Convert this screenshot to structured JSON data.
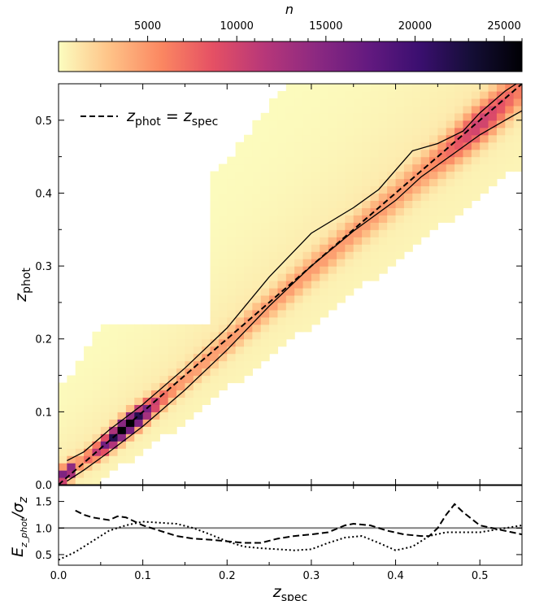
{
  "colormap": {
    "label": "n",
    "ticks": [
      "5000",
      "10000",
      "15000",
      "20000",
      "25000"
    ],
    "tick_values": [
      5000,
      10000,
      15000,
      20000,
      25000
    ],
    "range": [
      1,
      26000
    ],
    "stops": [
      "#fcfdbf",
      "#fec287",
      "#fb8761",
      "#e55064",
      "#b73779",
      "#8c2981",
      "#641a80",
      "#3b0f70",
      "#150e37",
      "#000004"
    ]
  },
  "main_panel": {
    "ylabel": "z",
    "ylabel_sub": "phot",
    "yticks": [
      "0.0",
      "0.1",
      "0.2",
      "0.3",
      "0.4",
      "0.5"
    ],
    "legend": {
      "prefix": "z",
      "sub1": "phot",
      "eq": " = z",
      "sub2": "spec"
    }
  },
  "ratio_panel": {
    "ylabel": "E",
    "ylabel_sub": "z_phot",
    "ylabel_den": "/σ",
    "ylabel_den_sub": "z",
    "yticks": [
      "0.5",
      "1.0",
      "1.5"
    ]
  },
  "xaxis": {
    "label": "z",
    "label_sub": "spec",
    "ticks": [
      "0.0",
      "0.1",
      "0.2",
      "0.3",
      "0.4",
      "0.5"
    ]
  },
  "chart_data": [
    {
      "type": "heatmap",
      "description_of_axes": "x: spectroscopic redshift, y: photometric redshift",
      "xlim": [
        0.0,
        0.55
      ],
      "ylim": [
        0.0,
        0.55
      ],
      "bin_width": 0.01,
      "colorbar_range": [
        1,
        26000
      ],
      "peak": {
        "x": 0.08,
        "y": 0.08,
        "n": 26000
      },
      "ridge": [
        [
          0.02,
          0.025
        ],
        [
          0.05,
          0.05
        ],
        [
          0.08,
          0.08
        ],
        [
          0.12,
          0.115
        ],
        [
          0.16,
          0.155
        ],
        [
          0.2,
          0.195
        ],
        [
          0.25,
          0.245
        ],
        [
          0.3,
          0.295
        ],
        [
          0.35,
          0.345
        ],
        [
          0.4,
          0.395
        ],
        [
          0.45,
          0.445
        ],
        [
          0.5,
          0.495
        ],
        [
          0.55,
          0.545
        ]
      ],
      "one_to_one_line": {
        "name": "z_phot = z_spec",
        "style": "dashed",
        "x": [
          0.0,
          0.55
        ],
        "y": [
          0.0,
          0.55
        ]
      },
      "upper_contour": {
        "x": [
          0.01,
          0.03,
          0.06,
          0.1,
          0.15,
          0.2,
          0.25,
          0.3,
          0.35,
          0.38,
          0.42,
          0.45,
          0.48,
          0.5,
          0.53,
          0.55
        ],
        "y": [
          0.033,
          0.045,
          0.075,
          0.11,
          0.16,
          0.215,
          0.285,
          0.345,
          0.38,
          0.405,
          0.458,
          0.468,
          0.485,
          0.51,
          0.54,
          0.555
        ]
      },
      "lower_contour": {
        "x": [
          0.01,
          0.03,
          0.06,
          0.1,
          0.15,
          0.2,
          0.25,
          0.3,
          0.35,
          0.4,
          0.43,
          0.47,
          0.5,
          0.53,
          0.55
        ],
        "y": [
          0.005,
          0.02,
          0.045,
          0.08,
          0.13,
          0.185,
          0.245,
          0.3,
          0.348,
          0.39,
          0.422,
          0.455,
          0.48,
          0.5,
          0.513
        ]
      }
    },
    {
      "type": "line",
      "xlim": [
        0.0,
        0.55
      ],
      "ylim": [
        0.3,
        1.8
      ],
      "reference_line": 1.0,
      "series": [
        {
          "style": "dashed",
          "x": [
            0.02,
            0.03,
            0.04,
            0.06,
            0.07,
            0.08,
            0.1,
            0.12,
            0.14,
            0.16,
            0.18,
            0.2,
            0.22,
            0.24,
            0.26,
            0.28,
            0.3,
            0.32,
            0.34,
            0.35,
            0.37,
            0.39,
            0.41,
            0.43,
            0.44,
            0.45,
            0.46,
            0.47,
            0.48,
            0.5,
            0.52,
            0.55
          ],
          "y": [
            1.33,
            1.25,
            1.2,
            1.15,
            1.22,
            1.2,
            1.05,
            0.95,
            0.85,
            0.8,
            0.78,
            0.75,
            0.72,
            0.72,
            0.8,
            0.85,
            0.88,
            0.92,
            1.05,
            1.08,
            1.05,
            0.95,
            0.88,
            0.85,
            0.85,
            1.0,
            1.25,
            1.45,
            1.3,
            1.05,
            0.98,
            0.88
          ]
        },
        {
          "style": "dotted",
          "x": [
            0.0,
            0.02,
            0.04,
            0.06,
            0.08,
            0.1,
            0.12,
            0.14,
            0.16,
            0.18,
            0.2,
            0.22,
            0.24,
            0.26,
            0.28,
            0.3,
            0.32,
            0.34,
            0.36,
            0.38,
            0.4,
            0.42,
            0.44,
            0.46,
            0.5,
            0.55
          ],
          "y": [
            0.4,
            0.55,
            0.75,
            0.95,
            1.05,
            1.12,
            1.1,
            1.08,
            1.0,
            0.88,
            0.75,
            0.65,
            0.62,
            0.6,
            0.58,
            0.6,
            0.72,
            0.82,
            0.85,
            0.72,
            0.58,
            0.65,
            0.85,
            0.92,
            0.92,
            1.05
          ]
        }
      ]
    }
  ]
}
